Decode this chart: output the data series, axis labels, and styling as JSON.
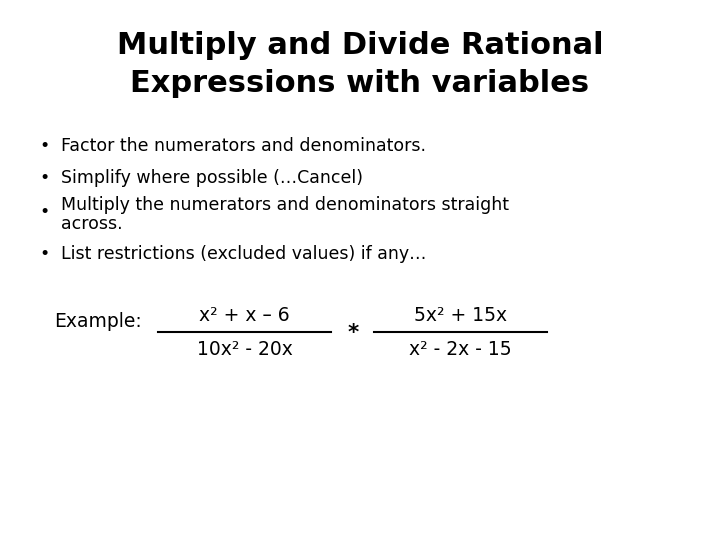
{
  "title_line1": "Multiply and Divide Rational",
  "title_line2": "Expressions with variables",
  "bullet_points": [
    "Factor the numerators and denominators.",
    "Simplify where possible (…Cancel)",
    "Multiply the numerators and denominators straight",
    "across.",
    "List restrictions (excluded values) if any…"
  ],
  "background_color": "#ffffff",
  "text_color": "#000000",
  "title_fontsize": 22,
  "bullet_fontsize": 12.5,
  "example_fontsize": 13.5
}
